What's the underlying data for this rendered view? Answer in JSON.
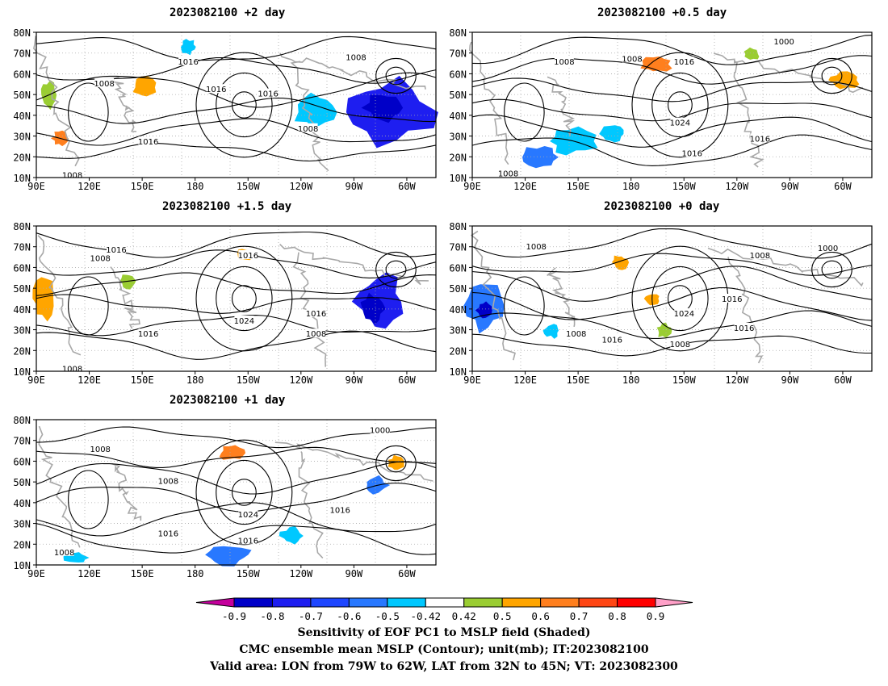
{
  "panels": [
    {
      "id": "p1",
      "title": "2023082100 +2 day",
      "lat_ticks": [
        "80N",
        "70N",
        "60N",
        "50N",
        "40N",
        "30N",
        "20N",
        "10N"
      ],
      "lon_ticks": [
        "90E",
        "120E",
        "150E",
        "180",
        "150W",
        "120W",
        "90W",
        "60W"
      ],
      "contour_labels": [
        "1016",
        "1008",
        "1008",
        "1016",
        "1016",
        "1008",
        "1016",
        "1008"
      ]
    },
    {
      "id": "p2",
      "title": "2023082100 +0.5 day",
      "lat_ticks": [
        "80N",
        "70N",
        "60N",
        "50N",
        "40N",
        "30N",
        "20N",
        "10N"
      ],
      "lon_ticks": [
        "90E",
        "120E",
        "150E",
        "180",
        "150W",
        "120W",
        "90W",
        "60W"
      ],
      "contour_labels": [
        "1000",
        "1008",
        "1008",
        "1016",
        "1024",
        "1016",
        "1016",
        "1008"
      ]
    },
    {
      "id": "p3",
      "title": "2023082100 +1.5 day",
      "lat_ticks": [
        "80N",
        "70N",
        "60N",
        "50N",
        "40N",
        "30N",
        "20N",
        "10N"
      ],
      "lon_ticks": [
        "90E",
        "120E",
        "150E",
        "180",
        "150W",
        "120W",
        "90W",
        "60W"
      ],
      "contour_labels": [
        "1016",
        "1008",
        "1016",
        "1024",
        "1016",
        "1016",
        "1008",
        "1008"
      ]
    },
    {
      "id": "p4",
      "title": "2023082100 +0 day",
      "lat_ticks": [
        "80N",
        "70N",
        "60N",
        "50N",
        "40N",
        "30N",
        "20N",
        "10N"
      ],
      "lon_ticks": [
        "90E",
        "120E",
        "150E",
        "180",
        "150W",
        "120W",
        "90W",
        "60W"
      ],
      "contour_labels": [
        "1008",
        "1008",
        "1000",
        "1016",
        "1024",
        "1016",
        "1008",
        "1016",
        "1008"
      ]
    },
    {
      "id": "p5",
      "title": "2023082100 +1 day",
      "lat_ticks": [
        "80N",
        "70N",
        "60N",
        "50N",
        "40N",
        "30N",
        "20N",
        "10N"
      ],
      "lon_ticks": [
        "90E",
        "120E",
        "150E",
        "180",
        "150W",
        "120W",
        "90W",
        "60W"
      ],
      "contour_labels": [
        "1008",
        "1000",
        "1008",
        "1024",
        "1016",
        "1016",
        "1016",
        "1008"
      ]
    }
  ],
  "colorbar": {
    "labels": [
      "-0.9",
      "-0.8",
      "-0.7",
      "-0.6",
      "-0.5",
      "-0.42",
      "0.42",
      "0.5",
      "0.6",
      "0.7",
      "0.8",
      "0.9"
    ],
    "colors": [
      "#c4009c",
      "#0000c8",
      "#1e1ef0",
      "#1e46ff",
      "#2878ff",
      "#00c8ff",
      "#ffffff",
      "#9acd32",
      "#ffa500",
      "#ff7f1e",
      "#ff4614",
      "#ff0000",
      "#ff0000",
      "#ffa0c8"
    ]
  },
  "caption": {
    "line1": "Sensitivity of EOF PC1 to MSLP field (Shaded)",
    "line2": "CMC ensemble mean MSLP (Contour); unit(mb); IT:2023082100",
    "line3": "Valid area: LON from 79W to 62W, LAT from 32N to 45N; VT: 2023082300"
  }
}
